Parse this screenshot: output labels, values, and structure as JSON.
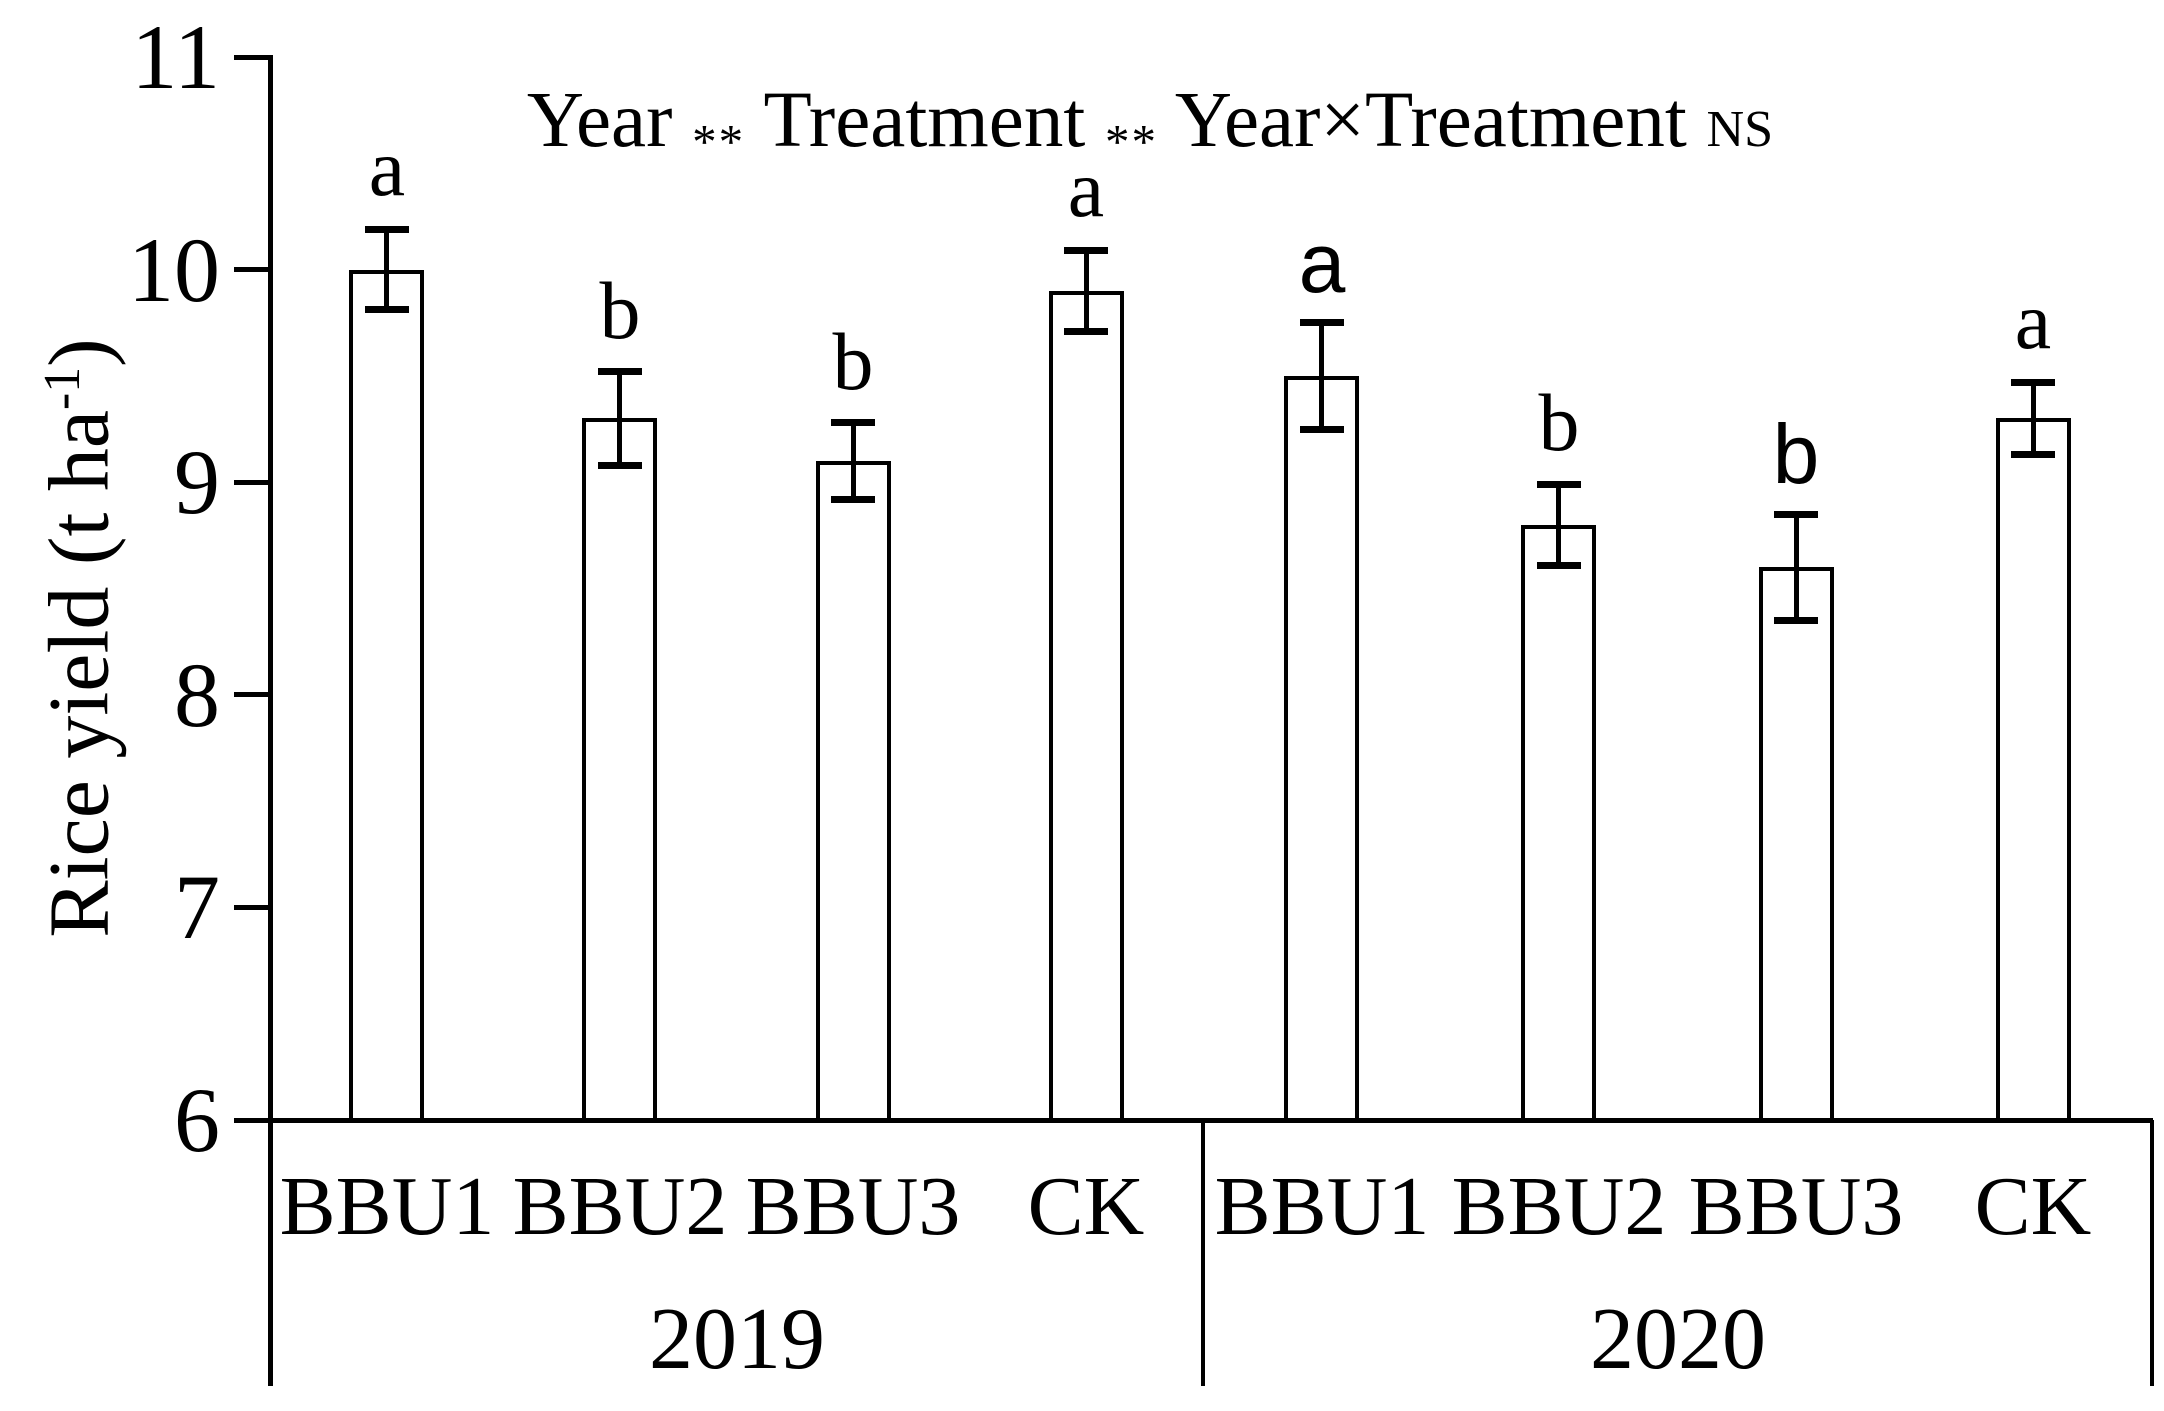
{
  "figure": {
    "background": "#ffffff",
    "ink": "#000000"
  },
  "chart_data": {
    "type": "bar",
    "title": "",
    "xlabel": "",
    "ylabel_text": "Rice yield (t ha-1)",
    "ylabel_parts": [
      {
        "text": "Rice yield (t ha"
      },
      {
        "text": "-1",
        "sup": true
      },
      {
        "text": ")"
      }
    ],
    "ylim": [
      6,
      11
    ],
    "y_ticks": [
      11,
      10,
      9,
      8,
      7,
      6
    ],
    "grid": false,
    "legend_position": "none",
    "bar_fill": "#ffffff",
    "bar_stroke": "#000000",
    "categories": [
      "BBU1",
      "BBU2",
      "BBU3",
      "CK"
    ],
    "stats_annotation": {
      "full_text": "Year ** Treatment ** Year×Treatment NS",
      "parts": [
        {
          "text": "Year ",
          "style": "normal"
        },
        {
          "text": "**",
          "style": "stars"
        },
        {
          "text": " Treatment ",
          "style": "normal"
        },
        {
          "text": "**",
          "style": "stars"
        },
        {
          "text": " Year×Treatment ",
          "style": "normal"
        },
        {
          "text": "NS",
          "style": "ns"
        }
      ]
    },
    "groups": [
      {
        "year": "2019",
        "bars": [
          {
            "treatment": "BBU1",
            "value": 10.0,
            "error": 0.19,
            "letter": "a",
            "letter_font": "serif"
          },
          {
            "treatment": "BBU2",
            "value": 9.3,
            "error": 0.22,
            "letter": "b",
            "letter_font": "serif"
          },
          {
            "treatment": "BBU3",
            "value": 9.1,
            "error": 0.18,
            "letter": "b",
            "letter_font": "serif"
          },
          {
            "treatment": "CK",
            "value": 9.9,
            "error": 0.19,
            "letter": "a",
            "letter_font": "serif"
          }
        ]
      },
      {
        "year": "2020",
        "bars": [
          {
            "treatment": "BBU1",
            "value": 9.5,
            "error": 0.25,
            "letter": "a",
            "letter_font": "sans"
          },
          {
            "treatment": "BBU2",
            "value": 8.8,
            "error": 0.19,
            "letter": "b",
            "letter_font": "serif"
          },
          {
            "treatment": "BBU3",
            "value": 8.6,
            "error": 0.25,
            "letter": "b",
            "letter_font": "sans"
          },
          {
            "treatment": "CK",
            "value": 9.3,
            "error": 0.17,
            "letter": "a",
            "letter_font": "serif"
          }
        ]
      }
    ]
  }
}
